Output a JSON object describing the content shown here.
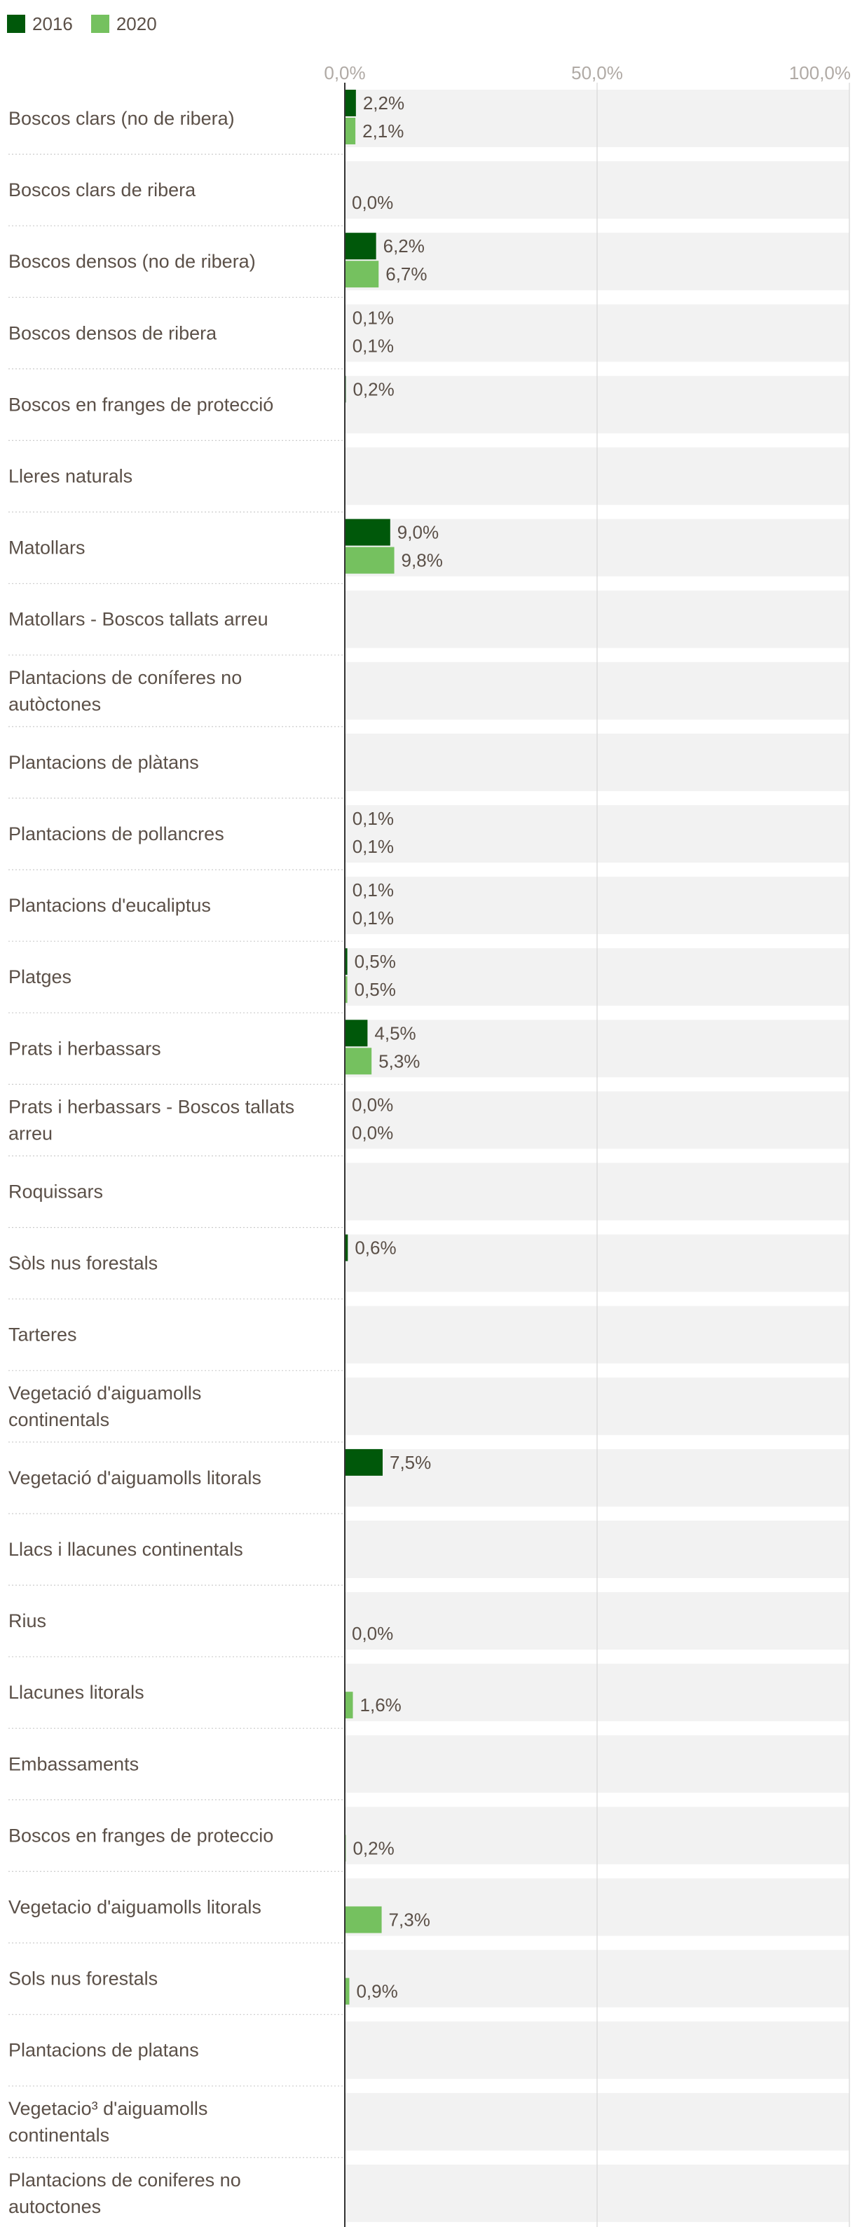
{
  "chart_data": {
    "type": "bar",
    "orientation": "horizontal",
    "title": "",
    "xlabel": "",
    "ylabel": "",
    "xlim": [
      0,
      100
    ],
    "ticks": [
      "0,0%",
      "50,0%",
      "100,0%"
    ],
    "tick_values": [
      0,
      50,
      100
    ],
    "grid": true,
    "legend_position": "top-left",
    "categories": [
      "Boscos clars (no de ribera)",
      "Boscos clars de ribera",
      "Boscos densos (no de ribera)",
      "Boscos densos de ribera",
      "Boscos en franges de protecció",
      "Lleres naturals",
      "Matollars",
      "Matollars - Boscos tallats arreu",
      "Plantacions de coníferes no autòctones",
      "Plantacions de plàtans",
      "Plantacions de pollancres",
      "Plantacions d'eucaliptus",
      "Platges",
      "Prats i herbassars",
      "Prats i herbassars - Boscos tallats arreu",
      "Roquissars",
      "Sòls nus forestals",
      "Tarteres",
      "Vegetació d'aiguamolls continentals",
      "Vegetació d'aiguamolls litorals",
      "Llacs i llacunes continentals",
      "Rius",
      "Llacunes litorals",
      "Embassaments",
      "Boscos en franges de proteccio",
      "Vegetacio d'aiguamolls litorals",
      "Sols nus forestals",
      "Plantacions de platans",
      "Vegetacio³ d'aiguamolls continentals",
      "Plantacions de coniferes no autoctones"
    ],
    "series": [
      {
        "name": "2016",
        "color": "#00580a",
        "values": [
          2.2,
          null,
          6.2,
          0.1,
          0.2,
          null,
          9.0,
          null,
          null,
          null,
          0.1,
          0.1,
          0.5,
          4.5,
          0.0,
          null,
          0.6,
          null,
          null,
          7.5,
          null,
          null,
          null,
          null,
          null,
          null,
          null,
          null,
          null,
          null
        ],
        "labels": [
          "2,2%",
          "",
          "6,2%",
          "0,1%",
          "0,2%",
          "",
          "9,0%",
          "",
          "",
          "",
          "0,1%",
          "0,1%",
          "0,5%",
          "4,5%",
          "0,0%",
          "",
          "0,6%",
          "",
          "",
          "7,5%",
          "",
          "",
          "",
          "",
          "",
          "",
          "",
          "",
          "",
          ""
        ]
      },
      {
        "name": "2020",
        "color": "#75c15f",
        "values": [
          2.1,
          0.0,
          6.7,
          0.1,
          null,
          null,
          9.8,
          null,
          null,
          null,
          0.1,
          0.1,
          0.5,
          5.3,
          0.0,
          null,
          null,
          null,
          null,
          null,
          null,
          0.0,
          1.6,
          null,
          0.2,
          7.3,
          0.9,
          null,
          null,
          null
        ],
        "labels": [
          "2,1%",
          "0,0%",
          "6,7%",
          "0,1%",
          "",
          "",
          "9,8%",
          "",
          "",
          "",
          "0,1%",
          "0,1%",
          "0,5%",
          "5,3%",
          "0,0%",
          "",
          "",
          "",
          "",
          "",
          "",
          "0,0%",
          "1,6%",
          "",
          "0,2%",
          "7,3%",
          "0,9%",
          "",
          "",
          ""
        ]
      }
    ]
  }
}
